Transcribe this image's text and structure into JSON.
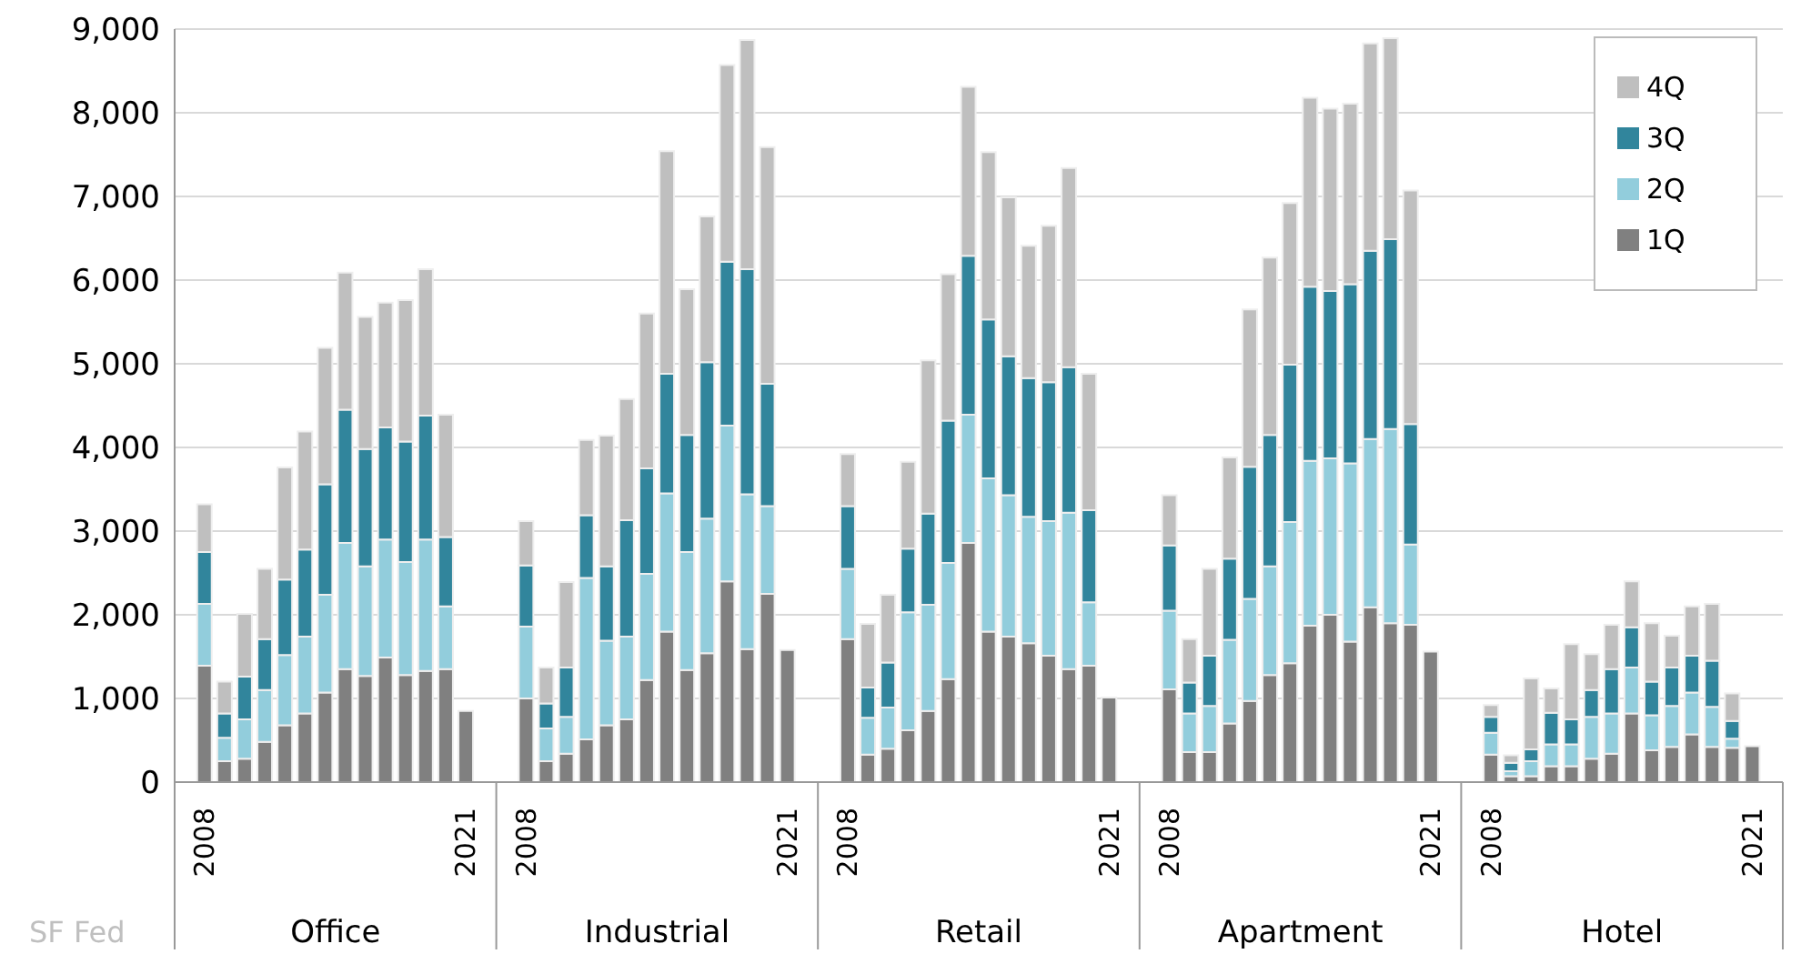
{
  "chart_data": {
    "type": "bar",
    "stacked": true,
    "categories": [
      null,
      "2008",
      null,
      null,
      null,
      null,
      null,
      null,
      null,
      null,
      null,
      null,
      null,
      null,
      "2021",
      null,
      null,
      "2008",
      null,
      null,
      null,
      null,
      null,
      null,
      null,
      null,
      null,
      null,
      null,
      null,
      "2021",
      null,
      null,
      "2008",
      null,
      null,
      null,
      null,
      null,
      null,
      null,
      null,
      null,
      null,
      null,
      null,
      "2021",
      null,
      null,
      "2008",
      null,
      null,
      null,
      null,
      null,
      null,
      null,
      null,
      null,
      null,
      null,
      null,
      "2021",
      null,
      null,
      "2008",
      null,
      null,
      null,
      null,
      null,
      null,
      null,
      null,
      null,
      null,
      null,
      null,
      "2021",
      null
    ],
    "series": [
      {
        "name": "1Q",
        "color": "#808080",
        "values": [
          null,
          1390,
          250,
          280,
          480,
          680,
          820,
          1070,
          1350,
          1270,
          1490,
          1280,
          1330,
          1350,
          850,
          null,
          null,
          1000,
          250,
          340,
          510,
          680,
          750,
          1220,
          1800,
          1340,
          1540,
          2400,
          1590,
          2250,
          1580,
          null,
          null,
          1710,
          330,
          400,
          620,
          850,
          1230,
          2860,
          1800,
          1740,
          1660,
          1510,
          1350,
          1390,
          1010,
          null,
          null,
          1110,
          360,
          360,
          700,
          970,
          1280,
          1420,
          1870,
          2000,
          1680,
          2090,
          1900,
          1880,
          1560,
          null,
          null,
          330,
          70,
          70,
          190,
          190,
          280,
          340,
          820,
          380,
          420,
          570,
          420,
          410,
          430,
          null
        ]
      },
      {
        "name": "2Q",
        "color": "#92cddc",
        "values": [
          null,
          740,
          280,
          470,
          620,
          840,
          920,
          1170,
          1510,
          1310,
          1410,
          1350,
          1570,
          750,
          null,
          null,
          null,
          860,
          390,
          440,
          1930,
          1010,
          990,
          1270,
          1650,
          1410,
          1610,
          1860,
          1850,
          1050,
          null,
          null,
          null,
          840,
          440,
          490,
          1410,
          1270,
          1390,
          1530,
          1830,
          1690,
          1510,
          1610,
          1870,
          760,
          null,
          null,
          null,
          940,
          460,
          550,
          1000,
          1220,
          1300,
          1690,
          1970,
          1870,
          2130,
          2010,
          2320,
          960,
          null,
          null,
          null,
          260,
          60,
          180,
          260,
          260,
          500,
          480,
          550,
          420,
          490,
          500,
          480,
          110,
          null,
          null
        ]
      },
      {
        "name": "3Q",
        "color": "#31859c",
        "values": [
          null,
          620,
          290,
          510,
          610,
          900,
          1040,
          1320,
          1590,
          1400,
          1340,
          1440,
          1480,
          830,
          null,
          null,
          null,
          730,
          300,
          590,
          750,
          890,
          1390,
          1260,
          1430,
          1400,
          1870,
          1960,
          2690,
          1460,
          null,
          null,
          null,
          750,
          360,
          540,
          760,
          1090,
          1700,
          1900,
          1900,
          1660,
          1660,
          1660,
          1740,
          1100,
          null,
          null,
          null,
          780,
          370,
          600,
          970,
          1580,
          1570,
          1880,
          2080,
          2000,
          2140,
          2250,
          2270,
          1440,
          null,
          null,
          null,
          190,
          100,
          140,
          380,
          300,
          320,
          530,
          480,
          400,
          460,
          440,
          550,
          210,
          null,
          null
        ]
      },
      {
        "name": "4Q",
        "color": "#bfbfbf",
        "values": [
          null,
          570,
          380,
          750,
          840,
          1340,
          1410,
          1630,
          1640,
          1580,
          1490,
          1690,
          1750,
          1460,
          null,
          null,
          null,
          530,
          430,
          1020,
          900,
          1560,
          1450,
          1850,
          2660,
          1740,
          1740,
          2350,
          2740,
          2830,
          null,
          null,
          null,
          620,
          760,
          810,
          1040,
          1830,
          1750,
          2020,
          2000,
          1900,
          1580,
          1870,
          2380,
          1630,
          null,
          null,
          null,
          600,
          520,
          1040,
          1210,
          1880,
          2120,
          1930,
          2260,
          2180,
          2160,
          2480,
          2400,
          2790,
          null,
          null,
          null,
          140,
          90,
          850,
          290,
          900,
          430,
          530,
          550,
          700,
          380,
          590,
          680,
          330,
          null,
          null
        ]
      }
    ],
    "ylim": [
      0,
      9000
    ],
    "yticks": [
      0,
      {
        "value": 1000,
        "label": "1,000"
      },
      {
        "value": 2000,
        "label": "2,000"
      },
      {
        "value": 3000,
        "label": "3,000"
      },
      {
        "value": 4000,
        "label": "4,000"
      },
      {
        "value": 5000,
        "label": "5,000"
      },
      {
        "value": 6000,
        "label": "6,000"
      },
      {
        "value": 7000,
        "label": "7,000"
      },
      {
        "value": 8000,
        "label": "8,000"
      },
      {
        "value": 9000,
        "label": "9,000"
      }
    ],
    "grid": "y",
    "legend": "top right",
    "annotations": [
      "Office",
      "Industrial",
      "Retail",
      "Apartment",
      "Hotel",
      "SF Fed"
    ]
  }
}
